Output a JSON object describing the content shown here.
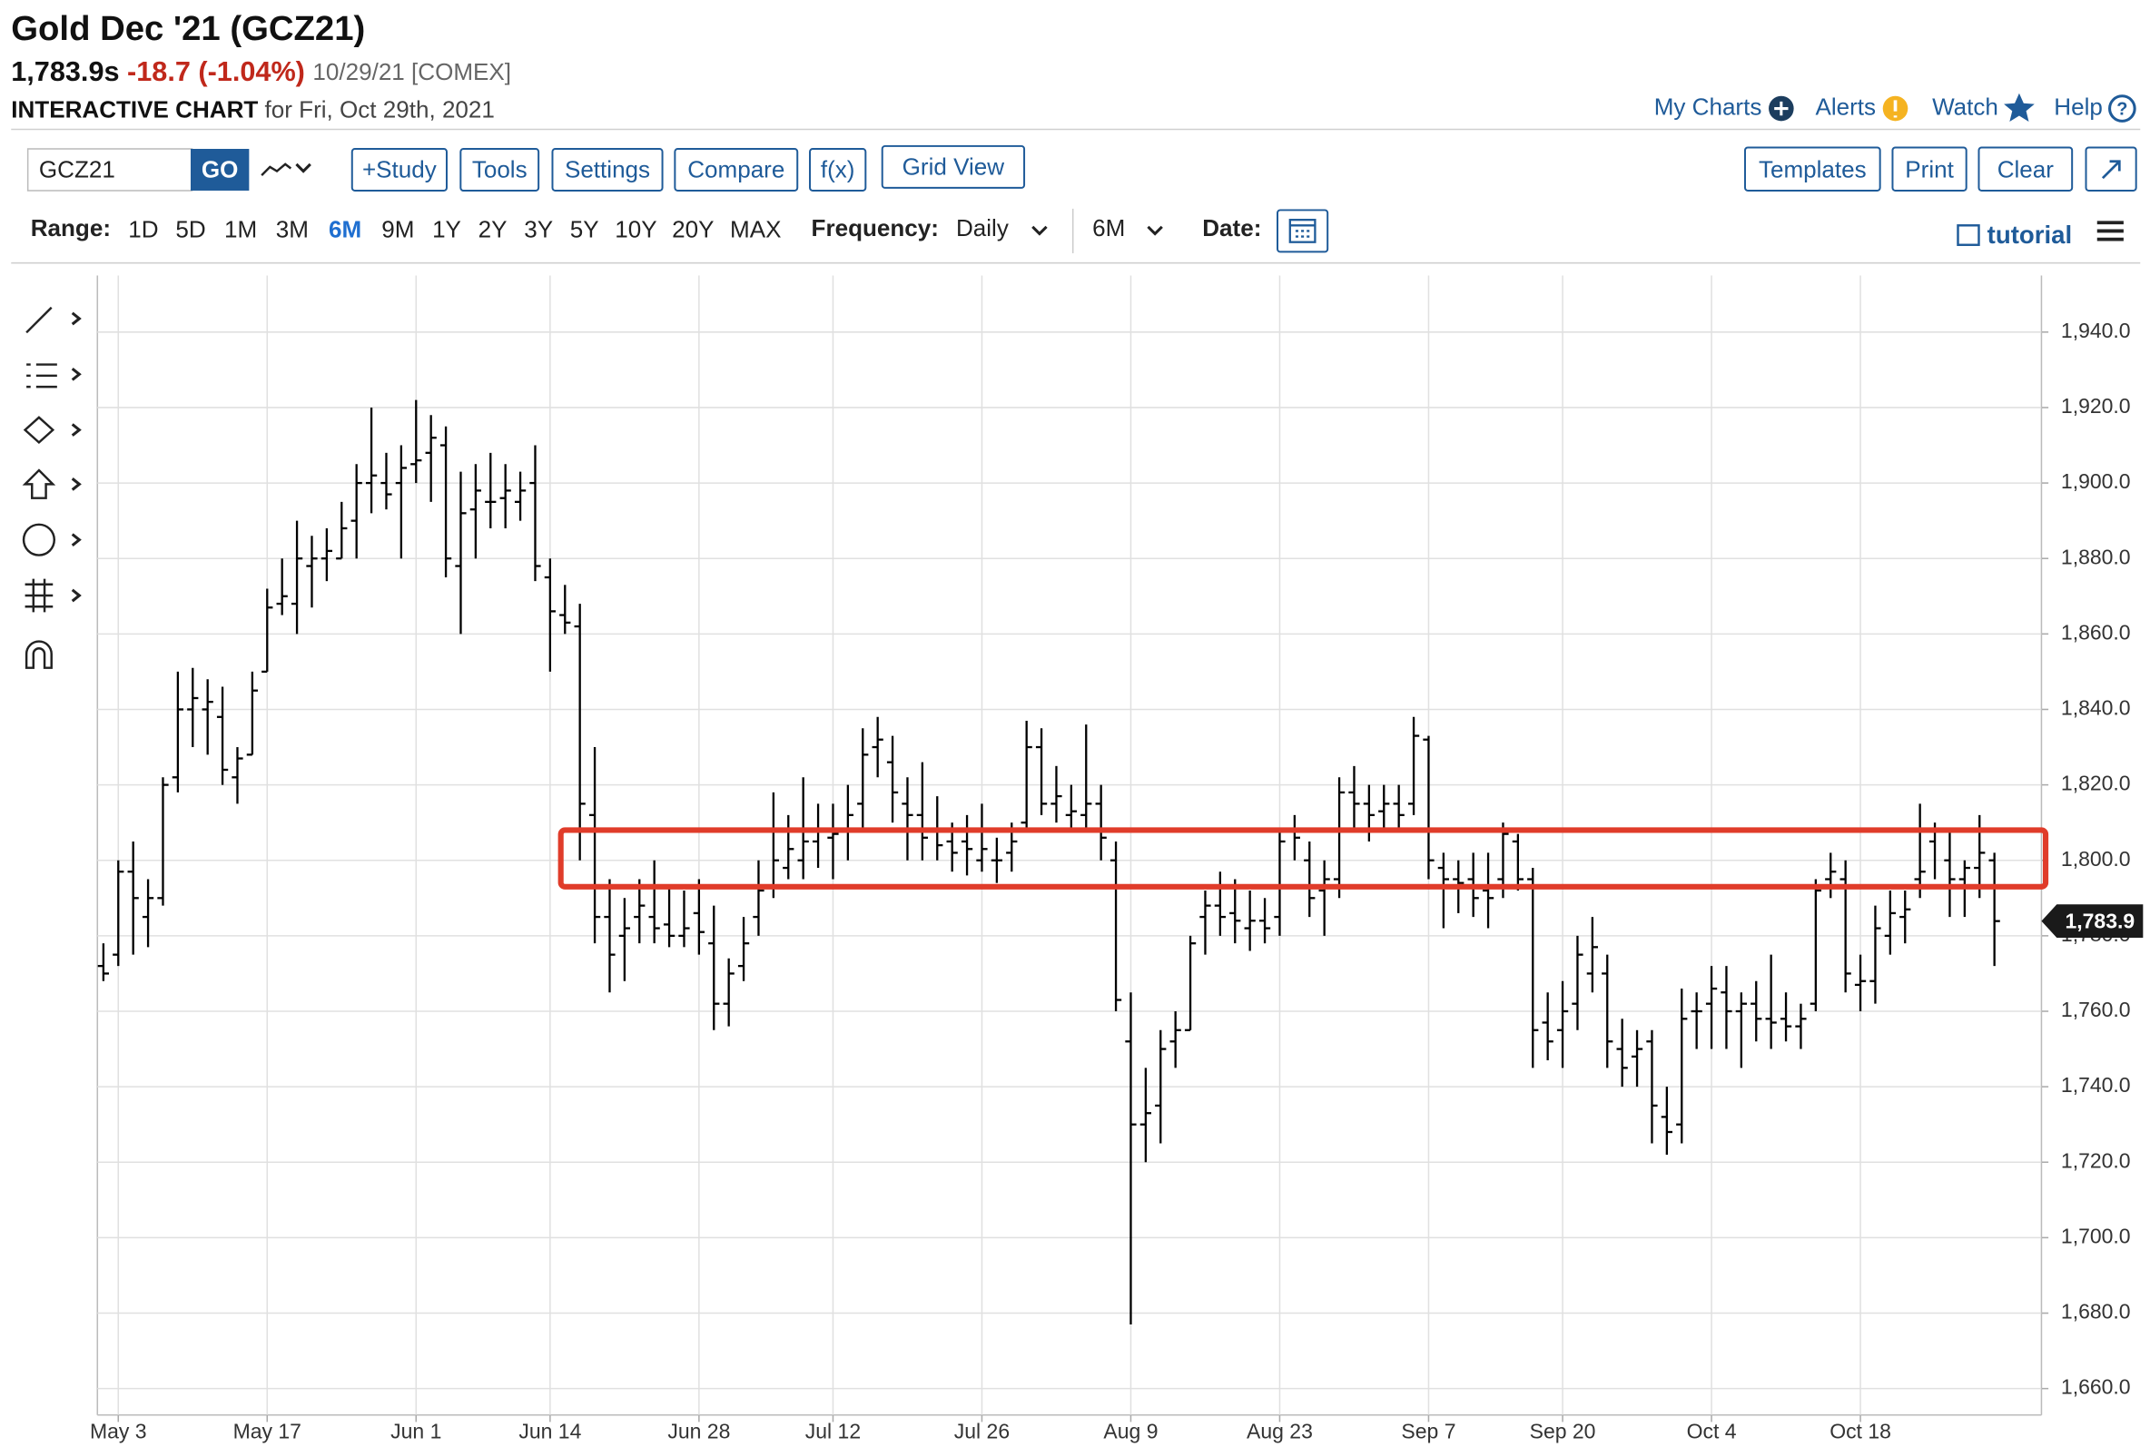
{
  "header": {
    "title": "Gold Dec '21 (GCZ21)",
    "price": "1,783.9s",
    "change": "-18.7 (-1.04%)",
    "date": "10/29/21 [COMEX]",
    "chart_label": "INTERACTIVE CHART",
    "chart_date": "for Fri, Oct 29th, 2021",
    "links": [
      "My Charts",
      "Alerts",
      "Watch",
      "Help"
    ]
  },
  "toolbar": {
    "symbol": "GCZ21",
    "go": "GO",
    "buttons": [
      "+Study",
      "Tools",
      "Settings",
      "Compare",
      "f(x)",
      "Grid View"
    ],
    "right_buttons": [
      "Templates",
      "Print",
      "Clear"
    ]
  },
  "range_bar": {
    "range_label": "Range:",
    "ranges": [
      "1D",
      "5D",
      "1M",
      "3M",
      "6M",
      "9M",
      "1Y",
      "2Y",
      "3Y",
      "5Y",
      "10Y",
      "20Y",
      "MAX"
    ],
    "selected": "6M",
    "frequency_label": "Frequency:",
    "frequency": "Daily",
    "period": "6M",
    "date_label": "Date:",
    "tutorial": "tutorial"
  },
  "chart_data": {
    "type": "ohlc",
    "color": "#000000",
    "categories": [
      null,
      "May 3",
      null,
      null,
      null,
      null,
      null,
      null,
      null,
      null,
      null,
      "May 17",
      null,
      null,
      null,
      null,
      null,
      null,
      null,
      null,
      null,
      "Jun 1",
      null,
      null,
      null,
      null,
      null,
      null,
      null,
      null,
      "Jun 14",
      null,
      null,
      null,
      null,
      null,
      null,
      null,
      null,
      null,
      "Jun 28",
      null,
      null,
      null,
      null,
      null,
      null,
      null,
      null,
      "Jul 12",
      null,
      null,
      null,
      null,
      null,
      null,
      null,
      null,
      null,
      "Jul 26",
      null,
      null,
      null,
      null,
      null,
      null,
      null,
      null,
      null,
      "Aug 9",
      null,
      null,
      null,
      null,
      null,
      null,
      null,
      null,
      null,
      "Aug 23",
      null,
      null,
      null,
      null,
      null,
      null,
      null,
      null,
      null,
      "Sep 7",
      null,
      null,
      null,
      null,
      null,
      null,
      null,
      null,
      "Sep 20",
      null,
      null,
      null,
      null,
      null,
      null,
      null,
      null,
      null,
      "Oct 4",
      null,
      null,
      null,
      null,
      null,
      null,
      null,
      null,
      null,
      "Oct 18",
      null,
      null,
      null,
      null,
      null,
      null,
      null,
      null,
      null
    ],
    "open": [
      1772,
      1775,
      1797,
      1785,
      1790,
      1822,
      1840,
      1840,
      1838,
      1822,
      1828,
      1850,
      1868,
      1868,
      1878,
      1880,
      1880,
      1890,
      1900,
      1900,
      1900,
      1905,
      1908,
      1910,
      1878,
      1893,
      1895,
      1896,
      1895,
      1900,
      1875,
      1865,
      1862,
      1812,
      1785,
      1780,
      1785,
      1785,
      1783,
      1780,
      1786,
      1778,
      1762,
      1772,
      1785,
      1793,
      1798,
      1800,
      1805,
      1806,
      1808,
      1815,
      1830,
      1826,
      1815,
      1812,
      1808,
      1805,
      1805,
      1800,
      1800,
      1802,
      1810,
      1830,
      1815,
      1812,
      1812,
      1815,
      1800,
      1752,
      1730,
      1735,
      1752,
      1755,
      1785,
      1788,
      1786,
      1782,
      1784,
      1785,
      1808,
      1800,
      1792,
      1795,
      1818,
      1815,
      1813,
      1815,
      1815,
      1832,
      1798,
      1795,
      1795,
      1792,
      1795,
      1805,
      1795,
      1757,
      1755,
      1762,
      1770,
      1770,
      1750,
      1748,
      1752,
      1732,
      1730,
      1760,
      1762,
      1765,
      1760,
      1762,
      1758,
      1758,
      1756,
      1762,
      1795,
      1795,
      1767,
      1768,
      1780,
      1785,
      1795,
      1805,
      1800,
      1795,
      1798,
      1800
    ],
    "high": [
      1778,
      1800,
      1805,
      1795,
      1822,
      1850,
      1851,
      1848,
      1846,
      1830,
      1850,
      1872,
      1880,
      1890,
      1886,
      1888,
      1895,
      1905,
      1920,
      1908,
      1910,
      1922,
      1918,
      1915,
      1903,
      1905,
      1908,
      1905,
      1903,
      1910,
      1880,
      1873,
      1868,
      1830,
      1795,
      1790,
      1795,
      1800,
      1793,
      1792,
      1795,
      1788,
      1774,
      1785,
      1800,
      1818,
      1812,
      1822,
      1815,
      1815,
      1820,
      1835,
      1838,
      1833,
      1822,
      1826,
      1817,
      1810,
      1812,
      1815,
      1806,
      1810,
      1837,
      1835,
      1825,
      1820,
      1836,
      1820,
      1805,
      1765,
      1745,
      1755,
      1760,
      1780,
      1792,
      1797,
      1795,
      1792,
      1790,
      1808,
      1812,
      1805,
      1800,
      1822,
      1825,
      1820,
      1820,
      1820,
      1838,
      1833,
      1802,
      1800,
      1802,
      1802,
      1810,
      1807,
      1798,
      1765,
      1768,
      1780,
      1785,
      1775,
      1758,
      1755,
      1755,
      1740,
      1766,
      1765,
      1772,
      1772,
      1765,
      1768,
      1775,
      1765,
      1762,
      1795,
      1802,
      1800,
      1775,
      1788,
      1792,
      1792,
      1815,
      1810,
      1808,
      1800,
      1812,
      1802
    ],
    "low": [
      1768,
      1772,
      1775,
      1777,
      1788,
      1818,
      1830,
      1828,
      1820,
      1815,
      1828,
      1850,
      1865,
      1860,
      1867,
      1874,
      1880,
      1880,
      1892,
      1893,
      1880,
      1900,
      1895,
      1875,
      1860,
      1880,
      1888,
      1888,
      1890,
      1874,
      1850,
      1860,
      1800,
      1778,
      1765,
      1768,
      1778,
      1778,
      1777,
      1777,
      1775,
      1755,
      1756,
      1768,
      1780,
      1790,
      1795,
      1795,
      1798,
      1795,
      1800,
      1808,
      1822,
      1810,
      1800,
      1800,
      1800,
      1797,
      1796,
      1797,
      1794,
      1797,
      1808,
      1812,
      1810,
      1808,
      1808,
      1800,
      1760,
      1677,
      1720,
      1725,
      1745,
      1755,
      1775,
      1780,
      1778,
      1776,
      1778,
      1780,
      1800,
      1785,
      1780,
      1790,
      1808,
      1805,
      1808,
      1808,
      1812,
      1795,
      1782,
      1786,
      1785,
      1782,
      1790,
      1792,
      1745,
      1747,
      1745,
      1755,
      1765,
      1745,
      1740,
      1740,
      1725,
      1722,
      1725,
      1750,
      1750,
      1750,
      1745,
      1752,
      1750,
      1752,
      1750,
      1760,
      1790,
      1765,
      1760,
      1762,
      1775,
      1778,
      1790,
      1795,
      1785,
      1785,
      1790,
      1772
    ],
    "close": [
      1770,
      1797,
      1790,
      1790,
      1820,
      1840,
      1843,
      1842,
      1824,
      1827,
      1845,
      1867,
      1870,
      1880,
      1880,
      1882,
      1888,
      1900,
      1902,
      1897,
      1904,
      1906,
      1912,
      1880,
      1892,
      1898,
      1895,
      1898,
      1898,
      1878,
      1866,
      1863,
      1815,
      1785,
      1775,
      1782,
      1788,
      1782,
      1780,
      1782,
      1781,
      1762,
      1770,
      1778,
      1792,
      1800,
      1803,
      1805,
      1808,
      1807,
      1812,
      1828,
      1832,
      1818,
      1812,
      1806,
      1804,
      1802,
      1803,
      1803,
      1800,
      1805,
      1830,
      1815,
      1817,
      1813,
      1815,
      1806,
      1763,
      1730,
      1733,
      1750,
      1755,
      1778,
      1788,
      1785,
      1784,
      1784,
      1782,
      1805,
      1806,
      1790,
      1795,
      1818,
      1815,
      1812,
      1815,
      1812,
      1833,
      1800,
      1795,
      1794,
      1790,
      1790,
      1807,
      1795,
      1755,
      1752,
      1760,
      1775,
      1777,
      1752,
      1745,
      1750,
      1735,
      1728,
      1758,
      1760,
      1766,
      1760,
      1762,
      1758,
      1757,
      1756,
      1758,
      1792,
      1797,
      1770,
      1768,
      1782,
      1786,
      1787,
      1797,
      1808,
      1795,
      1798,
      1802,
      1783.9
    ],
    "last_label": "1,783.9",
    "ylim": [
      1653,
      1955
    ],
    "yticks": [
      {
        "value": 1660,
        "label": "1,660.0"
      },
      {
        "value": 1680,
        "label": "1,680.0"
      },
      {
        "value": 1700,
        "label": "1,700.0"
      },
      {
        "value": 1720,
        "label": "1,720.0"
      },
      {
        "value": 1740,
        "label": "1,740.0"
      },
      {
        "value": 1760,
        "label": "1,760.0"
      },
      {
        "value": 1780,
        "label": "1,780.0"
      },
      {
        "value": 1800,
        "label": "1,800.0"
      },
      {
        "value": 1820,
        "label": "1,820.0"
      },
      {
        "value": 1840,
        "label": "1,840.0"
      },
      {
        "value": 1860,
        "label": "1,860.0"
      },
      {
        "value": 1880,
        "label": "1,880.0"
      },
      {
        "value": 1900,
        "label": "1,900.0"
      },
      {
        "value": 1920,
        "label": "1,920.0"
      },
      {
        "value": 1940,
        "label": "1,940.0"
      }
    ],
    "grid": true,
    "highlight_band": [
      1793,
      1808
    ],
    "highlight_color": "#e03c2a"
  }
}
